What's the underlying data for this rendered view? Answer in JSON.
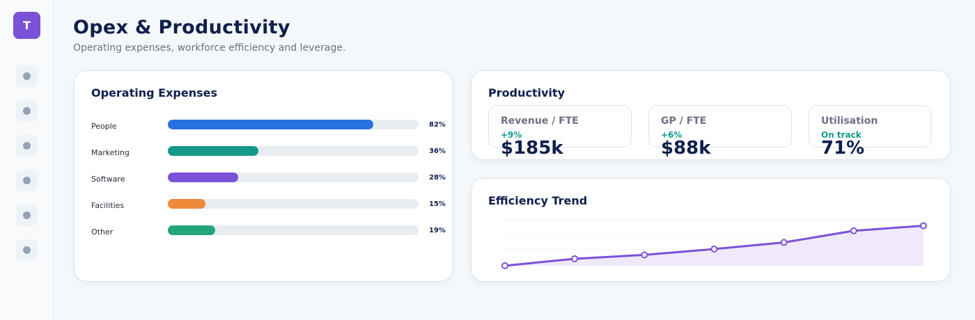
{
  "brand": {
    "logo_letter": "T",
    "accent": "#7b51d8"
  },
  "sidebar": {
    "items": [
      {
        "icon": "nav-dot-icon"
      },
      {
        "icon": "nav-dot-icon"
      },
      {
        "icon": "nav-dot-icon"
      },
      {
        "icon": "nav-dot-icon"
      },
      {
        "icon": "nav-dot-icon"
      },
      {
        "icon": "nav-dot-icon"
      }
    ]
  },
  "header": {
    "title": "Opex & Productivity",
    "subtitle": "Operating expenses, workforce efficiency and leverage."
  },
  "opex": {
    "title": "Operating Expenses",
    "rows": [
      {
        "label": "People",
        "value": 82,
        "display": "82%",
        "color": "#2771e0"
      },
      {
        "label": "Marketing",
        "value": 36,
        "display": "36%",
        "color": "#12998a"
      },
      {
        "label": "Software",
        "value": 28,
        "display": "28%",
        "color": "#7b51d8"
      },
      {
        "label": "Facilities",
        "value": 15,
        "display": "15%",
        "color": "#ef8a3a"
      },
      {
        "label": "Other",
        "value": 19,
        "display": "19%",
        "color": "#22a57a"
      }
    ]
  },
  "productivity": {
    "title": "Productivity",
    "kpis": [
      {
        "label": "Revenue / FTE",
        "delta": "+9%",
        "value": "$185k"
      },
      {
        "label": "GP / FTE",
        "delta": "+6%",
        "value": "$88k"
      },
      {
        "label": "Utilisation",
        "delta": "On track",
        "value": "71%"
      }
    ]
  },
  "efficiency": {
    "title": "Efficiency Trend"
  },
  "chart_data": {
    "type": "area",
    "title": "Efficiency Trend",
    "x": [
      1,
      2,
      3,
      4,
      5,
      6,
      7
    ],
    "series": [
      {
        "values": [
          0,
          18,
          28,
          43,
          60,
          90,
          103
        ]
      }
    ],
    "ylim": [
      0,
      120
    ],
    "grid": true,
    "color": "#7b51d8"
  }
}
